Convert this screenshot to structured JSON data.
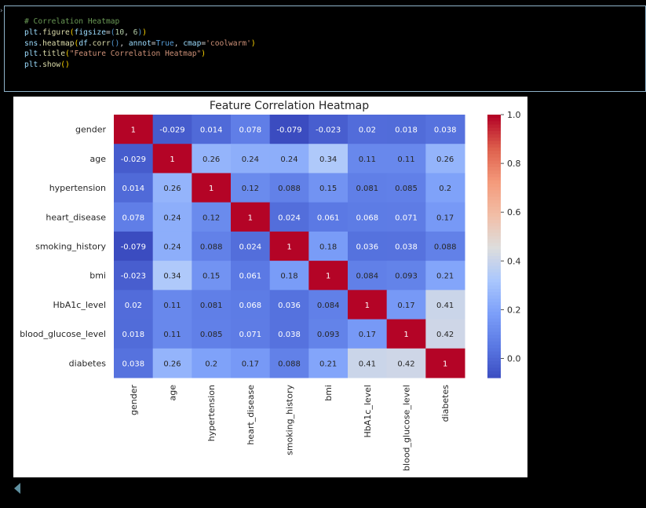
{
  "code_cell": {
    "lines": [
      "# Correlation Heatmap",
      "plt.figure(figsize=(10, 6))",
      "sns.heatmap(df.corr(), annot=True, cmap='coolwarm')",
      "plt.title(\"Feature Correlation Heatmap\")",
      "plt.show()"
    ]
  },
  "chart_data": {
    "type": "heatmap",
    "title": "Feature Correlation Heatmap",
    "colormap": "coolwarm",
    "labels": [
      "gender",
      "age",
      "hypertension",
      "heart_disease",
      "smoking_history",
      "bmi",
      "HbA1c_level",
      "blood_glucose_level",
      "diabetes"
    ],
    "values": [
      [
        "1",
        "-0.029",
        "0.014",
        "0.078",
        "-0.079",
        "-0.023",
        "0.02",
        "0.018",
        "0.038"
      ],
      [
        "-0.029",
        "1",
        "0.26",
        "0.24",
        "0.24",
        "0.34",
        "0.11",
        "0.11",
        "0.26"
      ],
      [
        "0.014",
        "0.26",
        "1",
        "0.12",
        "0.088",
        "0.15",
        "0.081",
        "0.085",
        "0.2"
      ],
      [
        "0.078",
        "0.24",
        "0.12",
        "1",
        "0.024",
        "0.061",
        "0.068",
        "0.071",
        "0.17"
      ],
      [
        "-0.079",
        "0.24",
        "0.088",
        "0.024",
        "1",
        "0.18",
        "0.036",
        "0.038",
        "0.088"
      ],
      [
        "-0.023",
        "0.34",
        "0.15",
        "0.061",
        "0.18",
        "1",
        "0.084",
        "0.093",
        "0.21"
      ],
      [
        "0.02",
        "0.11",
        "0.081",
        "0.068",
        "0.036",
        "0.084",
        "1",
        "0.17",
        "0.41"
      ],
      [
        "0.018",
        "0.11",
        "0.085",
        "0.071",
        "0.038",
        "0.093",
        "0.17",
        "1",
        "0.42"
      ],
      [
        "0.038",
        "0.26",
        "0.2",
        "0.17",
        "0.088",
        "0.21",
        "0.41",
        "0.42",
        "1"
      ]
    ],
    "colorbar": {
      "range": [
        -0.079,
        1.0
      ],
      "ticks": [
        "0.0",
        "0.2",
        "0.4",
        "0.6",
        "0.8",
        "1.0"
      ]
    }
  }
}
